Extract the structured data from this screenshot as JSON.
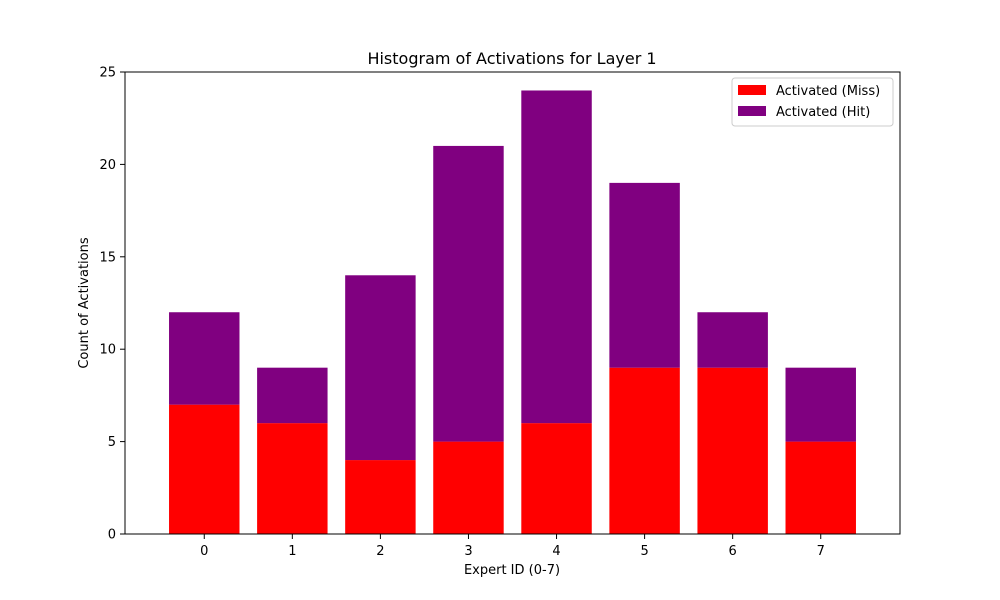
{
  "chart_data": {
    "type": "bar",
    "stacked": true,
    "title": "Histogram of Activations for Layer 1",
    "xlabel": "Expert ID (0-7)",
    "ylabel": "Count of Activations",
    "categories": [
      "0",
      "1",
      "2",
      "3",
      "4",
      "5",
      "6",
      "7"
    ],
    "series": [
      {
        "name": "Activated (Miss)",
        "color": "#ff0000",
        "values": [
          7,
          6,
          4,
          5,
          6,
          9,
          9,
          5
        ]
      },
      {
        "name": "Activated (Hit)",
        "color": "#800080",
        "values": [
          5,
          3,
          10,
          16,
          18,
          10,
          3,
          4
        ]
      }
    ],
    "ylim": [
      0,
      25
    ],
    "yticks": [
      0,
      5,
      10,
      15,
      20,
      25
    ],
    "grid": false,
    "legend_position": "top-right"
  }
}
